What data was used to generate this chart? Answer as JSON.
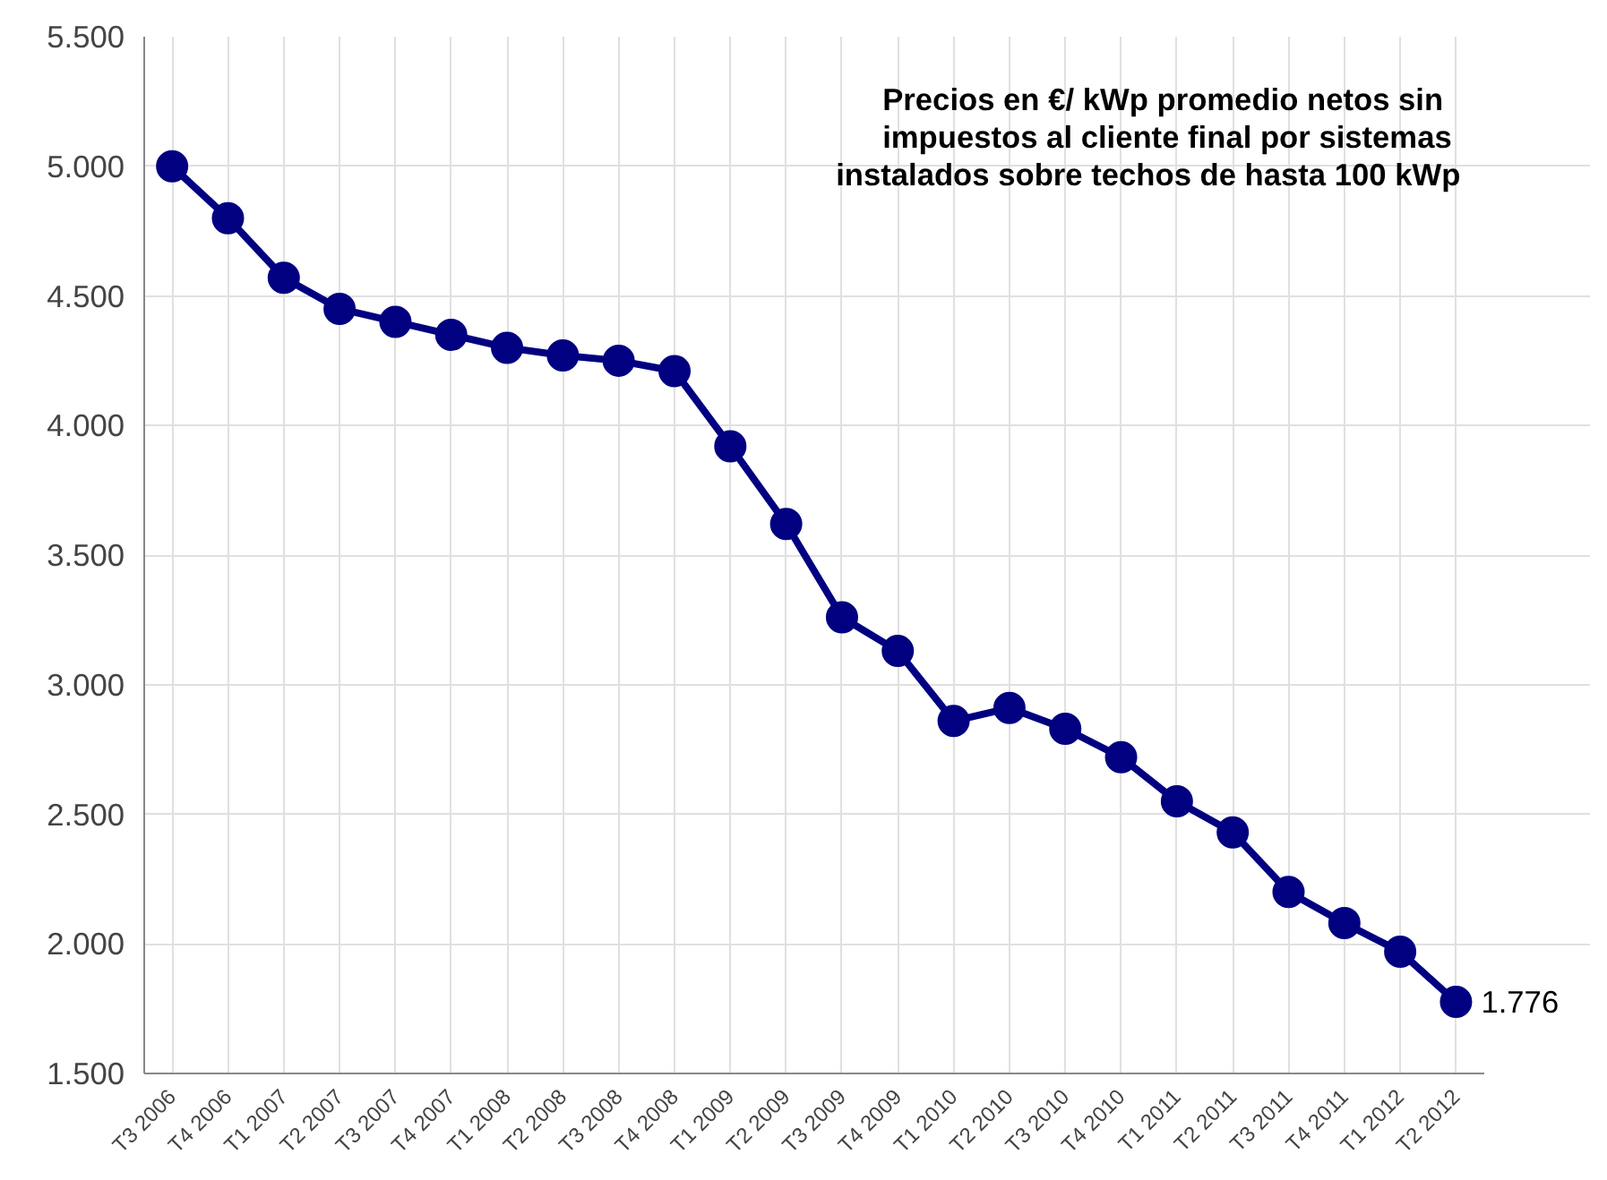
{
  "chart_data": {
    "type": "line",
    "title": "Precios en €/ kWp   promedio netos sin\nimpuestos  al cliente final por sistemas\ninstalados sobre techos de hasta 100 kWp",
    "categories": [
      "T3 2006",
      "T4 2006",
      "T1 2007",
      "T2 2007",
      "T3 2007",
      "T4 2007",
      "T1 2008",
      "T2 2008",
      "T3 2008",
      "T4 2008",
      "T1 2009",
      "T2 2009",
      "T3 2009",
      "T4 2009",
      "T1 2010",
      "T2 2010",
      "T3 2010",
      "T4 2010",
      "T1 2011",
      "T2 2011",
      "T3 2011",
      "T4 2011",
      "T1 2012",
      "T2 2012"
    ],
    "series": [
      {
        "color": "#000080",
        "values": [
          5000,
          4800,
          4570,
          4450,
          4400,
          4350,
          4300,
          4270,
          4250,
          4210,
          3920,
          3620,
          3260,
          3130,
          2860,
          2910,
          2830,
          2720,
          2550,
          2430,
          2200,
          2080,
          1970,
          1776
        ],
        "value_labels": [
          null,
          null,
          null,
          null,
          null,
          null,
          null,
          null,
          null,
          null,
          null,
          null,
          null,
          null,
          null,
          null,
          null,
          null,
          null,
          null,
          null,
          null,
          null,
          "1.776"
        ]
      }
    ],
    "ylim": [
      1500,
      5500
    ],
    "yticks": [
      {
        "value": 1500,
        "label": "1.500"
      },
      {
        "value": 2000,
        "label": "2.000"
      },
      {
        "value": 2500,
        "label": "2.500"
      },
      {
        "value": 3000,
        "label": "3.000"
      },
      {
        "value": 3500,
        "label": "3.500"
      },
      {
        "value": 4000,
        "label": "4.000"
      },
      {
        "value": 4500,
        "label": "4.500"
      },
      {
        "value": 5000,
        "label": "5.000"
      },
      {
        "value": 5500,
        "label": "5.500"
      }
    ],
    "grid": true,
    "marker": "circle",
    "line_style": "solid"
  }
}
